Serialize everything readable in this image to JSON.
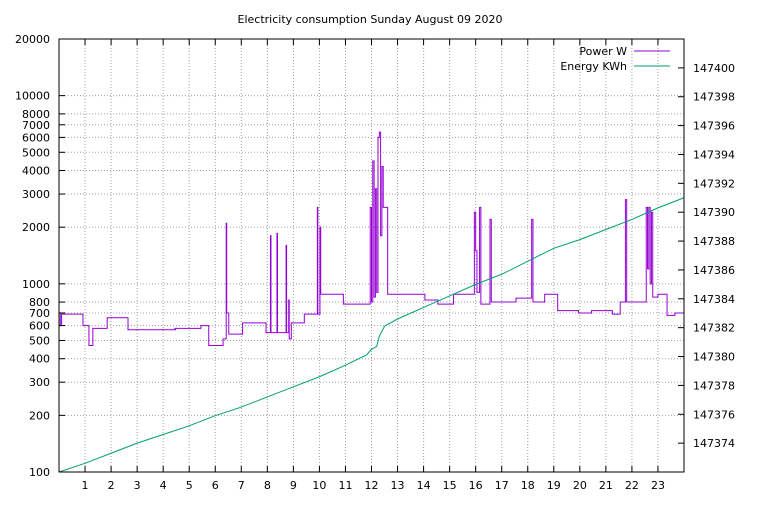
{
  "chart_data": {
    "type": "line",
    "title": "Electricity consumption Sunday August 09 2020",
    "grid": true,
    "legend_placement": "top-right",
    "x_axis": {
      "range": [
        0,
        24
      ],
      "tick_labels": [
        "1",
        "2",
        "3",
        "4",
        "5",
        "6",
        "7",
        "8",
        "9",
        "10",
        "11",
        "12",
        "13",
        "14",
        "15",
        "16",
        "17",
        "18",
        "19",
        "20",
        "21",
        "22",
        "23"
      ]
    },
    "y_axis_left": {
      "scale": "log",
      "range": [
        100,
        20000
      ],
      "tick_values": [
        100,
        200,
        300,
        400,
        500,
        600,
        700,
        800,
        1000,
        2000,
        3000,
        4000,
        5000,
        6000,
        7000,
        8000,
        10000,
        20000
      ],
      "tick_labels": [
        "100",
        "200",
        "300",
        "400",
        "500",
        "600",
        "700",
        "800",
        "1000",
        "2000",
        "3000",
        "4000",
        "5000",
        "6000",
        "7000",
        "8000",
        "10000",
        "20000"
      ]
    },
    "y_axis_right": {
      "scale": "linear",
      "range": [
        147372,
        147402
      ],
      "tick_values": [
        147374,
        147376,
        147378,
        147380,
        147382,
        147384,
        147386,
        147388,
        147390,
        147392,
        147394,
        147396,
        147398,
        147400
      ],
      "tick_labels": [
        "147374",
        "147376",
        "147378",
        "147380",
        "147382",
        "147384",
        "147386",
        "147388",
        "147390",
        "147392",
        "147394",
        "147396",
        "147398",
        "147400"
      ]
    },
    "series": [
      {
        "name": "Power W",
        "color": "#9400d3",
        "axis": "left",
        "step": true,
        "points": [
          [
            0.0,
            700
          ],
          [
            0.05,
            600
          ],
          [
            0.1,
            690
          ],
          [
            0.9,
            690
          ],
          [
            0.92,
            600
          ],
          [
            1.1,
            600
          ],
          [
            1.15,
            470
          ],
          [
            1.25,
            470
          ],
          [
            1.3,
            580
          ],
          [
            1.8,
            580
          ],
          [
            1.85,
            660
          ],
          [
            2.6,
            660
          ],
          [
            2.65,
            570
          ],
          [
            4.5,
            570
          ],
          [
            4.45,
            580
          ],
          [
            5.4,
            580
          ],
          [
            5.45,
            600
          ],
          [
            5.7,
            600
          ],
          [
            5.75,
            470
          ],
          [
            6.25,
            470
          ],
          [
            6.3,
            510
          ],
          [
            6.4,
            510
          ],
          [
            6.42,
            2100
          ],
          [
            6.44,
            700
          ],
          [
            6.5,
            700
          ],
          [
            6.52,
            540
          ],
          [
            7.0,
            540
          ],
          [
            7.05,
            620
          ],
          [
            7.9,
            620
          ],
          [
            7.95,
            550
          ],
          [
            8.1,
            550
          ],
          [
            8.12,
            1800
          ],
          [
            8.14,
            550
          ],
          [
            8.35,
            550
          ],
          [
            8.37,
            1850
          ],
          [
            8.39,
            550
          ],
          [
            8.7,
            550
          ],
          [
            8.72,
            1600
          ],
          [
            8.74,
            550
          ],
          [
            8.8,
            550
          ],
          [
            8.82,
            820
          ],
          [
            8.84,
            510
          ],
          [
            8.9,
            510
          ],
          [
            8.92,
            620
          ],
          [
            9.4,
            620
          ],
          [
            9.42,
            690
          ],
          [
            9.9,
            690
          ],
          [
            9.92,
            2550
          ],
          [
            9.94,
            690
          ],
          [
            10.0,
            690
          ],
          [
            10.02,
            2000
          ],
          [
            10.05,
            880
          ],
          [
            10.9,
            880
          ],
          [
            10.92,
            780
          ],
          [
            11.9,
            780
          ],
          [
            11.95,
            2550
          ],
          [
            12.0,
            800
          ],
          [
            12.05,
            4500
          ],
          [
            12.1,
            850
          ],
          [
            12.15,
            3200
          ],
          [
            12.2,
            900
          ],
          [
            12.25,
            6000
          ],
          [
            12.3,
            6400
          ],
          [
            12.35,
            1800
          ],
          [
            12.4,
            4200
          ],
          [
            12.45,
            2550
          ],
          [
            12.6,
            2550
          ],
          [
            12.62,
            880
          ],
          [
            14.0,
            880
          ],
          [
            14.05,
            820
          ],
          [
            14.5,
            820
          ],
          [
            14.55,
            780
          ],
          [
            15.1,
            780
          ],
          [
            15.15,
            880
          ],
          [
            15.9,
            880
          ],
          [
            15.95,
            2400
          ],
          [
            16.0,
            1500
          ],
          [
            16.05,
            900
          ],
          [
            16.1,
            900
          ],
          [
            16.15,
            2550
          ],
          [
            16.2,
            780
          ],
          [
            16.5,
            780
          ],
          [
            16.55,
            2200
          ],
          [
            16.6,
            800
          ],
          [
            17.5,
            800
          ],
          [
            17.55,
            840
          ],
          [
            18.1,
            840
          ],
          [
            18.15,
            2200
          ],
          [
            18.2,
            800
          ],
          [
            18.6,
            800
          ],
          [
            18.65,
            880
          ],
          [
            19.1,
            880
          ],
          [
            19.15,
            720
          ],
          [
            19.9,
            720
          ],
          [
            19.95,
            700
          ],
          [
            20.4,
            700
          ],
          [
            20.45,
            720
          ],
          [
            21.2,
            720
          ],
          [
            21.25,
            690
          ],
          [
            21.5,
            690
          ],
          [
            21.55,
            800
          ],
          [
            21.7,
            800
          ],
          [
            21.75,
            2800
          ],
          [
            21.8,
            800
          ],
          [
            22.5,
            800
          ],
          [
            22.55,
            2550
          ],
          [
            22.6,
            1200
          ],
          [
            22.65,
            2550
          ],
          [
            22.7,
            1000
          ],
          [
            22.75,
            2400
          ],
          [
            22.8,
            850
          ],
          [
            22.95,
            850
          ],
          [
            23.0,
            880
          ],
          [
            23.3,
            880
          ],
          [
            23.35,
            680
          ],
          [
            23.6,
            680
          ],
          [
            23.65,
            700
          ],
          [
            24.0,
            700
          ]
        ]
      },
      {
        "name": "Energy KWh",
        "color": "#009e73",
        "axis": "right",
        "step": false,
        "points": [
          [
            0.0,
            147372.0
          ],
          [
            1.0,
            147372.6
          ],
          [
            2.0,
            147373.3
          ],
          [
            3.0,
            147374.0
          ],
          [
            4.0,
            147374.6
          ],
          [
            5.0,
            147375.2
          ],
          [
            6.0,
            147375.9
          ],
          [
            7.0,
            147376.5
          ],
          [
            8.0,
            147377.2
          ],
          [
            9.0,
            147377.9
          ],
          [
            10.0,
            147378.6
          ],
          [
            11.0,
            147379.4
          ],
          [
            11.8,
            147380.1
          ],
          [
            12.0,
            147380.5
          ],
          [
            12.2,
            147380.7
          ],
          [
            12.3,
            147381.4
          ],
          [
            12.5,
            147382.1
          ],
          [
            13.0,
            147382.6
          ],
          [
            14.0,
            147383.4
          ],
          [
            15.0,
            147384.2
          ],
          [
            16.0,
            147385.0
          ],
          [
            17.0,
            147385.7
          ],
          [
            18.0,
            147386.6
          ],
          [
            19.0,
            147387.5
          ],
          [
            20.0,
            147388.1
          ],
          [
            21.0,
            147388.8
          ],
          [
            22.0,
            147389.5
          ],
          [
            23.0,
            147390.3
          ],
          [
            24.0,
            147391.0
          ]
        ]
      }
    ]
  }
}
